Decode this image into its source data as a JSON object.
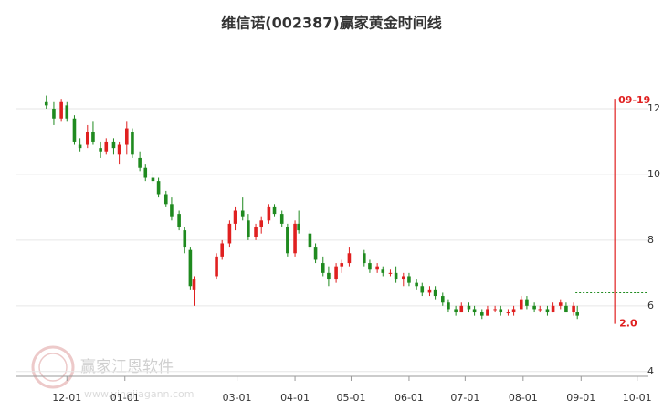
{
  "chart_data": {
    "type": "candlestick",
    "title": "维信诺(002387)赢家黄金时间线",
    "watermark": {
      "name": "赢家江恩软件",
      "url": "www.yingjiagann.com"
    },
    "x": [
      "11-20",
      "11-24",
      "11-28",
      "12-01",
      "12-05",
      "12-08",
      "12-12",
      "12-15",
      "12-19",
      "12-22",
      "12-26",
      "12-29",
      "01-02",
      "01-05",
      "01-09",
      "01-12",
      "01-16",
      "01-19",
      "01-23",
      "01-26",
      "01-30",
      "02-02",
      "02-05",
      "02-07",
      "02-19",
      "02-22",
      "02-26",
      "02-29",
      "03-04",
      "03-07",
      "03-11",
      "03-14",
      "03-18",
      "03-21",
      "03-25",
      "03-28",
      "04-01",
      "04-03",
      "04-09",
      "04-12",
      "04-16",
      "04-19",
      "04-23",
      "04-26",
      "04-30",
      "05-08",
      "05-11",
      "05-15",
      "05-18",
      "05-22",
      "05-25",
      "05-29",
      "06-01",
      "06-05",
      "06-08",
      "06-12",
      "06-15",
      "06-19",
      "06-22",
      "06-26",
      "06-29",
      "07-03",
      "07-06",
      "07-10",
      "07-13",
      "07-17",
      "07-20",
      "07-24",
      "07-27",
      "07-31",
      "08-03",
      "08-07",
      "08-10",
      "08-14",
      "08-17",
      "08-21",
      "08-24",
      "08-28",
      "08-30"
    ],
    "open": [
      12.2,
      12.0,
      11.7,
      12.1,
      11.7,
      10.9,
      10.9,
      11.3,
      10.8,
      10.7,
      11.0,
      10.6,
      10.9,
      11.3,
      10.5,
      10.2,
      9.9,
      9.8,
      9.4,
      9.1,
      8.8,
      8.3,
      7.7,
      6.5,
      6.9,
      7.5,
      7.9,
      8.5,
      8.9,
      8.6,
      8.1,
      8.4,
      8.6,
      9.0,
      8.8,
      8.4,
      7.6,
      8.5,
      8.2,
      7.8,
      7.3,
      7.0,
      6.8,
      7.2,
      7.3,
      7.6,
      7.3,
      7.1,
      7.1,
      7.0,
      7.0,
      6.8,
      6.9,
      6.7,
      6.6,
      6.4,
      6.5,
      6.3,
      6.1,
      5.9,
      5.8,
      6.0,
      5.9,
      5.8,
      5.7,
      5.9,
      5.9,
      5.8,
      5.8,
      5.9,
      6.2,
      6.0,
      5.9,
      5.9,
      5.8,
      6.0,
      6.0,
      5.8,
      5.8
    ],
    "high": [
      12.4,
      12.2,
      12.3,
      12.2,
      11.8,
      11.1,
      11.5,
      11.6,
      11.0,
      11.1,
      11.1,
      11.0,
      11.6,
      11.4,
      10.7,
      10.3,
      10.1,
      9.9,
      9.5,
      9.3,
      8.9,
      8.4,
      7.8,
      6.9,
      7.6,
      8.0,
      8.6,
      9.0,
      9.3,
      8.8,
      8.5,
      8.7,
      9.1,
      9.1,
      8.9,
      8.5,
      8.6,
      8.9,
      8.3,
      7.9,
      7.5,
      7.2,
      7.3,
      7.4,
      7.8,
      7.7,
      7.4,
      7.3,
      7.2,
      7.1,
      7.2,
      7.0,
      7.0,
      6.8,
      6.7,
      6.6,
      6.6,
      6.4,
      6.2,
      6.0,
      6.1,
      6.1,
      6.0,
      5.9,
      6.0,
      6.0,
      6.0,
      5.9,
      6.0,
      6.3,
      6.3,
      6.1,
      6.0,
      6.0,
      6.1,
      6.2,
      6.1,
      6.1,
      6.0
    ],
    "low": [
      12.0,
      11.5,
      11.6,
      11.6,
      10.9,
      10.7,
      10.8,
      10.9,
      10.5,
      10.6,
      10.6,
      10.3,
      10.6,
      10.5,
      10.1,
      9.8,
      9.7,
      9.3,
      9.0,
      8.6,
      8.3,
      7.6,
      6.5,
      6.0,
      6.8,
      7.4,
      7.8,
      8.3,
      8.6,
      8.0,
      8.0,
      8.2,
      8.5,
      8.7,
      8.4,
      7.5,
      7.5,
      8.2,
      7.7,
      7.3,
      6.9,
      6.6,
      6.7,
      7.0,
      7.2,
      7.2,
      7.0,
      7.0,
      6.9,
      6.9,
      6.7,
      6.6,
      6.6,
      6.5,
      6.3,
      6.3,
      6.2,
      6.0,
      5.8,
      5.7,
      5.8,
      5.8,
      5.7,
      5.6,
      5.7,
      5.8,
      5.7,
      5.7,
      5.7,
      5.9,
      5.9,
      5.8,
      5.8,
      5.7,
      5.8,
      5.9,
      5.8,
      5.7,
      5.6
    ],
    "close": [
      12.1,
      11.7,
      12.2,
      11.7,
      11.0,
      10.8,
      11.3,
      11.0,
      10.7,
      11.0,
      10.8,
      10.9,
      11.4,
      10.6,
      10.2,
      9.9,
      9.8,
      9.4,
      9.1,
      8.7,
      8.4,
      7.8,
      6.6,
      6.8,
      7.5,
      7.9,
      8.5,
      8.9,
      8.7,
      8.1,
      8.4,
      8.6,
      9.0,
      8.8,
      8.5,
      7.6,
      8.5,
      8.3,
      7.8,
      7.4,
      7.0,
      6.8,
      7.2,
      7.3,
      7.6,
      7.3,
      7.1,
      7.2,
      7.0,
      7.0,
      6.8,
      6.9,
      6.7,
      6.6,
      6.4,
      6.5,
      6.3,
      6.1,
      5.9,
      5.8,
      6.0,
      5.9,
      5.8,
      5.7,
      5.9,
      5.9,
      5.8,
      5.8,
      5.9,
      6.2,
      6.0,
      5.9,
      5.9,
      5.8,
      6.0,
      6.1,
      5.8,
      6.0,
      5.7
    ],
    "up_color": "#e02020",
    "down_color": "#1f8a1f",
    "xlim": [
      "11-04",
      "10-07"
    ],
    "xticks": [
      "12-01",
      "01-01",
      "03-01",
      "04-01",
      "05-01",
      "06-01",
      "07-01",
      "08-01",
      "09-01",
      "10-01"
    ],
    "ylim": [
      3.8,
      14
    ],
    "yticks": [
      4,
      6,
      8,
      10,
      12
    ],
    "grid": true,
    "annotation": {
      "date": "09-19",
      "label": "09-19",
      "top": 12.3,
      "bottom": 5.45,
      "note": "2.0",
      "color": "#e02020"
    },
    "reference_line": {
      "value": 6.4,
      "start": "08-29",
      "color": "#1f8a1f"
    }
  }
}
